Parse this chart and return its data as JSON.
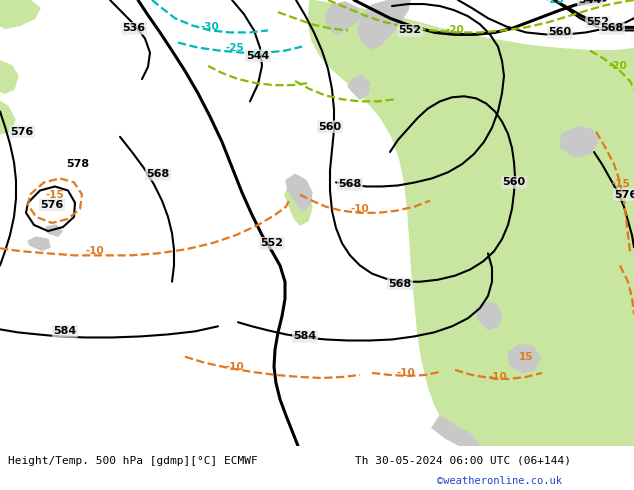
{
  "title_left": "Height/Temp. 500 hPa [gdmp][°C] ECMWF",
  "title_right": "Th 30-05-2024 06:00 UTC (06+144)",
  "copyright": "©weatheronline.co.uk",
  "fig_width": 6.34,
  "fig_height": 4.9,
  "dpi": 100,
  "bg_white": "#ffffff",
  "sea_color": "#e8e8e8",
  "land_green": "#c8e6a0",
  "land_grey": "#c8c8c8",
  "contour_black": "#000000",
  "contour_orange": "#e07820",
  "contour_cyan": "#00b8b8",
  "contour_lime": "#88bb00",
  "copyright_color": "#2244cc",
  "bottom_label_color": "#000000"
}
